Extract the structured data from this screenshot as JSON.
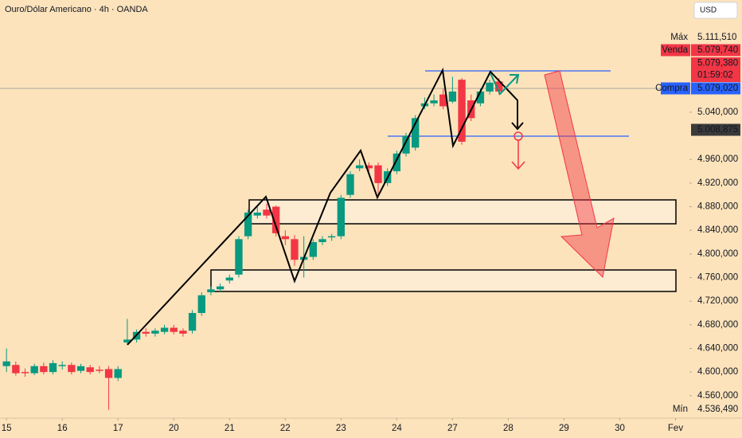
{
  "chart_data": {
    "type": "candlestick",
    "title": "Ouro/Dólar Americano · 4h · OANDA",
    "currency": "USD",
    "colors": {
      "up": "#089981",
      "down": "#f23645"
    },
    "x": [
      0,
      1,
      2,
      3,
      4,
      5,
      6,
      7,
      8,
      9,
      10,
      11,
      12,
      13,
      14,
      15,
      16,
      17,
      18,
      19,
      20,
      21,
      22,
      23,
      24,
      25,
      26,
      27,
      28,
      29,
      30,
      31,
      32,
      33,
      34,
      35,
      36,
      37,
      38,
      39,
      40,
      41,
      42,
      43,
      44,
      45,
      46,
      47,
      48,
      49,
      50,
      51,
      52,
      53
    ],
    "open": [
      4.61,
      4.612,
      4.6,
      4.598,
      4.61,
      4.6,
      4.61,
      4.612,
      4.602,
      4.608,
      4.604,
      4.605,
      4.59,
      4.65,
      4.655,
      4.668,
      4.665,
      4.668,
      4.675,
      4.67,
      4.67,
      4.7,
      4.735,
      4.74,
      4.755,
      4.765,
      4.83,
      4.865,
      4.875,
      4.88,
      4.83,
      4.825,
      4.79,
      4.795,
      4.82,
      4.828,
      4.83,
      4.9,
      4.945,
      4.95,
      4.95,
      4.92,
      4.94,
      4.97,
      4.98,
      5.05,
      5.055,
      5.07,
      5.058,
      5.095,
      5.06,
      5.055,
      5.075,
      5.092
    ],
    "high": [
      4.64,
      4.618,
      4.606,
      4.614,
      4.616,
      4.62,
      4.618,
      4.616,
      4.614,
      4.612,
      4.61,
      4.61,
      4.61,
      4.69,
      4.672,
      4.674,
      4.674,
      4.68,
      4.68,
      4.674,
      4.705,
      4.735,
      4.745,
      4.75,
      4.765,
      4.83,
      4.875,
      4.88,
      4.885,
      4.882,
      4.84,
      4.832,
      4.83,
      4.825,
      4.83,
      4.834,
      4.9,
      4.94,
      4.96,
      4.955,
      4.955,
      4.945,
      4.975,
      5.005,
      5.035,
      5.065,
      5.07,
      5.08,
      5.1,
      5.098,
      5.07,
      5.08,
      5.095,
      5.098
    ],
    "low": [
      4.6,
      4.594,
      4.592,
      4.595,
      4.596,
      4.596,
      4.604,
      4.596,
      4.598,
      4.596,
      4.598,
      4.536,
      4.585,
      4.646,
      4.65,
      4.66,
      4.66,
      4.664,
      4.664,
      4.66,
      4.665,
      4.695,
      4.73,
      4.735,
      4.75,
      4.76,
      4.825,
      4.86,
      4.86,
      4.83,
      4.815,
      4.78,
      4.76,
      4.79,
      4.815,
      4.822,
      4.825,
      4.895,
      4.94,
      4.94,
      4.9,
      4.915,
      4.935,
      4.965,
      4.975,
      5.045,
      5.05,
      5.045,
      5.055,
      4.985,
      5.025,
      5.05,
      5.07,
      5.07
    ],
    "close": [
      4.618,
      4.598,
      4.598,
      4.61,
      4.6,
      4.615,
      4.612,
      4.6,
      4.61,
      4.6,
      4.602,
      4.59,
      4.605,
      4.655,
      4.668,
      4.665,
      4.67,
      4.675,
      4.668,
      4.665,
      4.7,
      4.73,
      4.74,
      4.745,
      4.76,
      4.825,
      4.87,
      4.87,
      4.865,
      4.835,
      4.825,
      4.79,
      4.795,
      4.82,
      4.825,
      4.83,
      4.895,
      4.935,
      4.95,
      4.945,
      4.92,
      4.94,
      4.97,
      5.0,
      5.03,
      5.055,
      5.06,
      5.05,
      5.075,
      4.99,
      5.03,
      5.075,
      5.09,
      5.075
    ],
    "xlim": [
      -0.7,
      73.5
    ],
    "xticks": [
      {
        "value": 0,
        "label": "15"
      },
      {
        "value": 6,
        "label": "16"
      },
      {
        "value": 12,
        "label": "17"
      },
      {
        "value": 18,
        "label": "20"
      },
      {
        "value": 24,
        "label": "21"
      },
      {
        "value": 30,
        "label": "22"
      },
      {
        "value": 36,
        "label": "23"
      },
      {
        "value": 42,
        "label": "24"
      },
      {
        "value": 48,
        "label": "27"
      },
      {
        "value": 54,
        "label": "28"
      },
      {
        "value": 60,
        "label": "29"
      },
      {
        "value": 66,
        "label": "30"
      },
      {
        "value": 72,
        "label": "Fev"
      }
    ],
    "ylim": [
      4.522,
      5.23
    ],
    "yticks": [
      {
        "value": 4.56,
        "label": "4.560,000"
      },
      {
        "value": 4.6,
        "label": "4.600,000"
      },
      {
        "value": 4.64,
        "label": "4.640,000"
      },
      {
        "value": 4.68,
        "label": "4.680,000"
      },
      {
        "value": 4.72,
        "label": "4.720,000"
      },
      {
        "value": 4.76,
        "label": "4.760,000"
      },
      {
        "value": 4.8,
        "label": "4.800,000"
      },
      {
        "value": 4.84,
        "label": "4.840,000"
      },
      {
        "value": 4.88,
        "label": "4.880,000"
      },
      {
        "value": 4.92,
        "label": "4.920,000"
      },
      {
        "value": 4.96,
        "label": "4.960,000"
      },
      {
        "value": 5.04,
        "label": "5.040,000"
      }
    ],
    "price_labels": [
      {
        "name": "Máx",
        "value": 5.11151,
        "label": "5.111,510",
        "color": "#e8e8ea"
      },
      {
        "name": "Venda",
        "value": 5.07974,
        "label": "5.079,740",
        "color": "#f23645"
      },
      {
        "value": 5.07938,
        "label": "5.079,380",
        "countdown": "01:59:02",
        "color": "#f23645"
      },
      {
        "name": "Compra",
        "value": 5.07902,
        "label": "5.079,020",
        "color": "#2962ff"
      },
      {
        "value": 5.008875,
        "label": "5.008,875",
        "color": "#3a3a3a"
      },
      {
        "name": "Mín",
        "value": 4.53649,
        "label": "4.536,490",
        "color": "#e8e8ea"
      }
    ]
  }
}
